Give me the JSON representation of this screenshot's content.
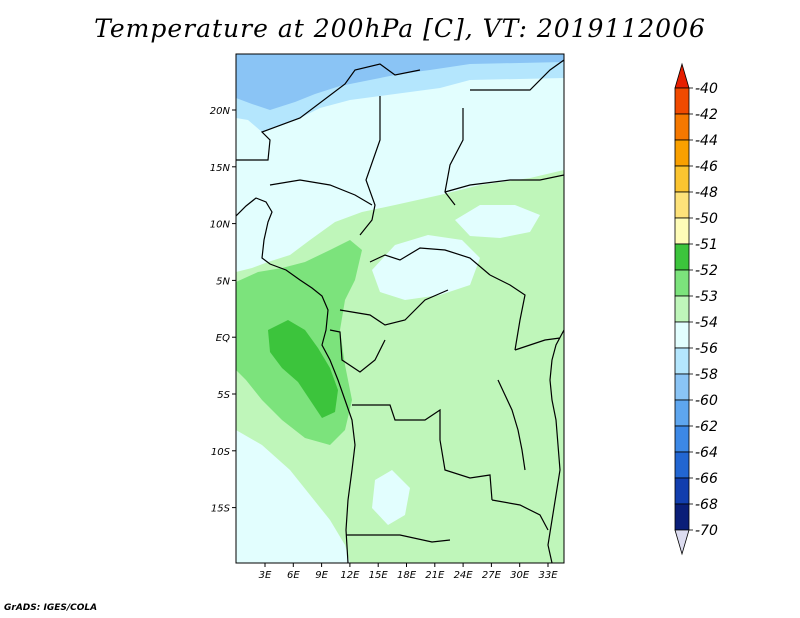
{
  "title": "Temperature at 200hPa [C], VT: 2019112006",
  "credit": "GrADS: IGES/COLA",
  "map": {
    "lat_labels": [
      "20N",
      "15N",
      "10N",
      "5N",
      "EQ",
      "5S",
      "10S",
      "15S"
    ],
    "lon_labels": [
      "3E",
      "6E",
      "9E",
      "12E",
      "15E",
      "18E",
      "21E",
      "24E",
      "27E",
      "30E",
      "33E"
    ]
  },
  "legend": {
    "items": [
      {
        "label": "-40",
        "color": "#e61e00"
      },
      {
        "label": "-42",
        "color": "#f04a00"
      },
      {
        "label": "-44",
        "color": "#f57800"
      },
      {
        "label": "-46",
        "color": "#f9a000"
      },
      {
        "label": "-48",
        "color": "#fbc430"
      },
      {
        "label": "-50",
        "color": "#fde27a"
      },
      {
        "label": "-51",
        "color": "#fefcb8"
      },
      {
        "label": "-52",
        "color": "#3cc43c"
      },
      {
        "label": "-53",
        "color": "#7ce37c"
      },
      {
        "label": "-54",
        "color": "#bff6ba"
      },
      {
        "label": "-56",
        "color": "#e2fefe"
      },
      {
        "label": "-58",
        "color": "#b4e6fd"
      },
      {
        "label": "-60",
        "color": "#8ac4f5"
      },
      {
        "label": "-62",
        "color": "#5ea6ef"
      },
      {
        "label": "-64",
        "color": "#3c88e6"
      },
      {
        "label": "-66",
        "color": "#2266d2"
      },
      {
        "label": "-68",
        "color": "#123eae"
      },
      {
        "label": "-70",
        "color": "#0a1e78"
      }
    ],
    "bottom_color": "#dcdcf0"
  }
}
